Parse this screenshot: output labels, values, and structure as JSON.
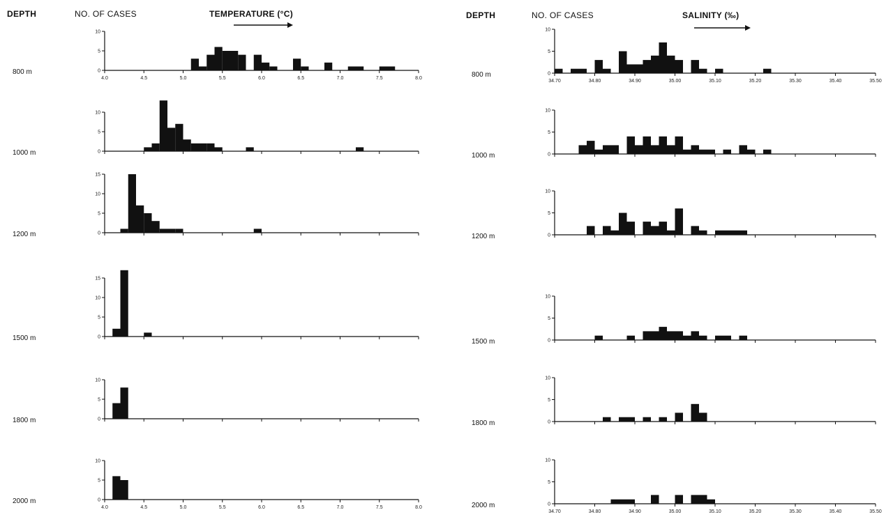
{
  "header": {
    "left_depth": "DEPTH",
    "left_cases": "NO. OF CASES",
    "left_title": "TEMPERATURE (°C)",
    "right_depth": "DEPTH",
    "right_cases": "NO. OF CASES",
    "right_title": "SALINITY (‰)"
  },
  "chart_data": [
    {
      "type": "bar",
      "title": "TEMPERATURE (°C)",
      "ylabel": "NO. OF CASES",
      "xlim": [
        4.0,
        8.0
      ],
      "bin_width": 0.1,
      "xticks": [
        4.0,
        4.5,
        5.0,
        5.5,
        6.0,
        6.5,
        7.0,
        7.5,
        8.0
      ],
      "xtick_labels": [
        "4.0",
        "4.5",
        "5.0",
        "5.5",
        "6.0",
        "6.5",
        "7.0",
        "7.5",
        "8.0"
      ],
      "panels": [
        {
          "depth": "800 m",
          "yticks": [
            0,
            5,
            10
          ],
          "ylim": [
            0,
            10
          ],
          "show_xtick_labels": true,
          "bins": [
            [
              5.1,
              3
            ],
            [
              5.2,
              1
            ],
            [
              5.3,
              4
            ],
            [
              5.4,
              6
            ],
            [
              5.5,
              5
            ],
            [
              5.6,
              5
            ],
            [
              5.7,
              4
            ],
            [
              5.9,
              4
            ],
            [
              6.0,
              2
            ],
            [
              6.1,
              1
            ],
            [
              6.4,
              3
            ],
            [
              6.5,
              1
            ],
            [
              6.8,
              2
            ],
            [
              7.1,
              1
            ],
            [
              7.2,
              1
            ],
            [
              7.5,
              1
            ],
            [
              7.6,
              1
            ]
          ]
        },
        {
          "depth": "1000 m",
          "yticks": [
            0,
            5,
            10
          ],
          "ylim": [
            0,
            14
          ],
          "show_xtick_labels": false,
          "bins": [
            [
              4.5,
              1
            ],
            [
              4.6,
              2
            ],
            [
              4.7,
              13
            ],
            [
              4.8,
              6
            ],
            [
              4.9,
              7
            ],
            [
              5.0,
              3
            ],
            [
              5.1,
              2
            ],
            [
              5.2,
              2
            ],
            [
              5.3,
              2
            ],
            [
              5.4,
              1
            ],
            [
              5.8,
              1
            ],
            [
              7.2,
              1
            ]
          ]
        },
        {
          "depth": "1200 m",
          "yticks": [
            0,
            5,
            10,
            15
          ],
          "ylim": [
            0,
            16
          ],
          "show_xtick_labels": false,
          "bins": [
            [
              4.2,
              1
            ],
            [
              4.3,
              15
            ],
            [
              4.4,
              7
            ],
            [
              4.5,
              5
            ],
            [
              4.6,
              3
            ],
            [
              4.7,
              1
            ],
            [
              4.8,
              1
            ],
            [
              4.9,
              1
            ],
            [
              5.9,
              1
            ]
          ]
        },
        {
          "depth": "1500 m",
          "yticks": [
            0,
            5,
            10,
            15
          ],
          "ylim": [
            0,
            17
          ],
          "show_xtick_labels": false,
          "bins": [
            [
              4.1,
              2
            ],
            [
              4.2,
              17
            ],
            [
              4.5,
              1
            ]
          ]
        },
        {
          "depth": "1800 m",
          "yticks": [
            0,
            5,
            10
          ],
          "ylim": [
            0,
            10
          ],
          "show_xtick_labels": false,
          "bins": [
            [
              4.1,
              4
            ],
            [
              4.2,
              8
            ]
          ]
        },
        {
          "depth": "2000 m",
          "yticks": [
            0,
            5,
            10
          ],
          "ylim": [
            0,
            10
          ],
          "show_xtick_labels": true,
          "bins": [
            [
              4.1,
              6
            ],
            [
              4.2,
              5
            ]
          ]
        }
      ]
    },
    {
      "type": "bar",
      "title": "SALINITY (‰)",
      "ylabel": "NO. OF CASES",
      "xlim": [
        34.7,
        35.5
      ],
      "bin_width": 0.02,
      "xticks": [
        34.7,
        34.8,
        34.9,
        35.0,
        35.1,
        35.2,
        35.3,
        35.4,
        35.5
      ],
      "xtick_labels": [
        "34.70",
        "34.80",
        "34.90",
        "35.00",
        "35.10",
        "35.20",
        "35.30",
        "35.40",
        "35.50"
      ],
      "panels": [
        {
          "depth": "800 m",
          "yticks": [
            0,
            5,
            10
          ],
          "ylim": [
            0,
            10
          ],
          "show_xtick_labels": true,
          "bins": [
            [
              34.7,
              1
            ],
            [
              34.74,
              1
            ],
            [
              34.76,
              1
            ],
            [
              34.8,
              3
            ],
            [
              34.82,
              1
            ],
            [
              34.86,
              5
            ],
            [
              34.88,
              2
            ],
            [
              34.9,
              2
            ],
            [
              34.92,
              3
            ],
            [
              34.94,
              4
            ],
            [
              34.96,
              7
            ],
            [
              34.98,
              4
            ],
            [
              35.0,
              3
            ],
            [
              35.04,
              3
            ],
            [
              35.06,
              1
            ],
            [
              35.1,
              1
            ],
            [
              35.22,
              1
            ]
          ]
        },
        {
          "depth": "1000 m",
          "yticks": [
            0,
            5,
            10
          ],
          "ylim": [
            0,
            10
          ],
          "show_xtick_labels": false,
          "bins": [
            [
              34.76,
              2
            ],
            [
              34.78,
              3
            ],
            [
              34.8,
              1
            ],
            [
              34.82,
              2
            ],
            [
              34.84,
              2
            ],
            [
              34.88,
              4
            ],
            [
              34.9,
              2
            ],
            [
              34.92,
              4
            ],
            [
              34.94,
              2
            ],
            [
              34.96,
              4
            ],
            [
              34.98,
              2
            ],
            [
              35.0,
              4
            ],
            [
              35.02,
              1
            ],
            [
              35.04,
              2
            ],
            [
              35.06,
              1
            ],
            [
              35.08,
              1
            ],
            [
              35.12,
              1
            ],
            [
              35.16,
              2
            ],
            [
              35.18,
              1
            ],
            [
              35.22,
              1
            ]
          ]
        },
        {
          "depth": "1200 m",
          "yticks": [
            0,
            5,
            10
          ],
          "ylim": [
            0,
            10
          ],
          "show_xtick_labels": false,
          "bins": [
            [
              34.78,
              2
            ],
            [
              34.82,
              2
            ],
            [
              34.84,
              1
            ],
            [
              34.86,
              5
            ],
            [
              34.88,
              3
            ],
            [
              34.92,
              3
            ],
            [
              34.94,
              2
            ],
            [
              34.96,
              3
            ],
            [
              34.98,
              1
            ],
            [
              35.0,
              6
            ],
            [
              35.04,
              2
            ],
            [
              35.06,
              1
            ],
            [
              35.1,
              1
            ],
            [
              35.12,
              1
            ],
            [
              35.14,
              1
            ],
            [
              35.16,
              1
            ]
          ]
        },
        {
          "depth": "1500 m",
          "yticks": [
            0,
            5,
            10
          ],
          "ylim": [
            0,
            10
          ],
          "show_xtick_labels": false,
          "bins": [
            [
              34.8,
              1
            ],
            [
              34.88,
              1
            ],
            [
              34.92,
              2
            ],
            [
              34.94,
              2
            ],
            [
              34.96,
              3
            ],
            [
              34.98,
              2
            ],
            [
              35.0,
              2
            ],
            [
              35.02,
              1
            ],
            [
              35.04,
              2
            ],
            [
              35.06,
              1
            ],
            [
              35.1,
              1
            ],
            [
              35.12,
              1
            ],
            [
              35.16,
              1
            ]
          ]
        },
        {
          "depth": "1800 m",
          "yticks": [
            0,
            5,
            10
          ],
          "ylim": [
            0,
            10
          ],
          "show_xtick_labels": false,
          "bins": [
            [
              34.82,
              1
            ],
            [
              34.86,
              1
            ],
            [
              34.88,
              1
            ],
            [
              34.92,
              1
            ],
            [
              34.96,
              1
            ],
            [
              35.0,
              2
            ],
            [
              35.04,
              4
            ],
            [
              35.06,
              2
            ]
          ]
        },
        {
          "depth": "2000 m",
          "yticks": [
            0,
            5,
            10
          ],
          "ylim": [
            0,
            10
          ],
          "show_xtick_labels": true,
          "bins": [
            [
              34.84,
              1
            ],
            [
              34.86,
              1
            ],
            [
              34.88,
              1
            ],
            [
              34.94,
              2
            ],
            [
              35.0,
              2
            ],
            [
              35.04,
              2
            ],
            [
              35.06,
              2
            ],
            [
              35.08,
              1
            ]
          ]
        }
      ]
    }
  ]
}
